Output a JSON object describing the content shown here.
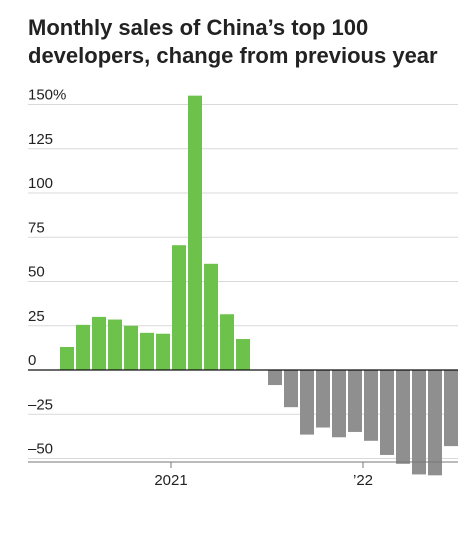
{
  "title": "Monthly sales of China’s top 100 developers, change from previous year",
  "chart_data": {
    "type": "bar",
    "title": "Monthly sales of China’s top 100 developers, change from previous year",
    "xlabel": "",
    "ylabel": "",
    "y_ticks": [
      {
        "value": 150,
        "label": "150%"
      },
      {
        "value": 125,
        "label": "125"
      },
      {
        "value": 100,
        "label": "100"
      },
      {
        "value": 75,
        "label": "75"
      },
      {
        "value": 50,
        "label": "50"
      },
      {
        "value": 25,
        "label": "25"
      },
      {
        "value": 0,
        "label": "0"
      },
      {
        "value": -25,
        "label": "–25"
      },
      {
        "value": -50,
        "label": "–50"
      }
    ],
    "x_ticks": [
      {
        "index": 7,
        "label": "2021"
      },
      {
        "index": 19,
        "label": "’22"
      }
    ],
    "ylim": [
      -60,
      158
    ],
    "grid": true,
    "positive_color": "#6cc24a",
    "negative_color": "#8f8f8f",
    "values": [
      13,
      25.5,
      30,
      28.5,
      25,
      21,
      20.5,
      70.5,
      155,
      60,
      31.5,
      17.5,
      null,
      -8.5,
      -21,
      -36.5,
      -32.5,
      -38,
      -35,
      -40,
      -48,
      -53,
      -59,
      -59.5,
      -43
    ]
  }
}
